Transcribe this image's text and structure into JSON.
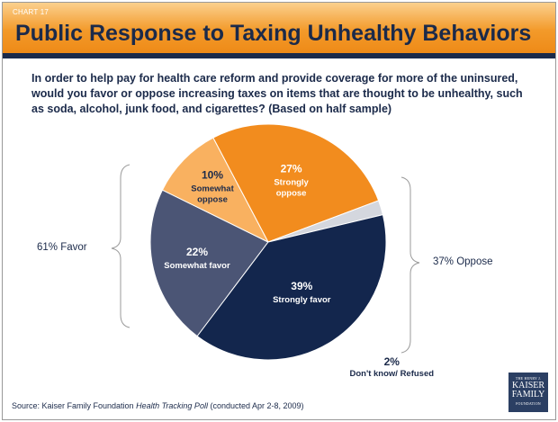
{
  "header": {
    "chart_number": "CHART 17",
    "title": "Public Response to Taxing Unhealthy Behaviors"
  },
  "question": "In order to help pay for health care reform and provide coverage for more of the uninsured, would you favor or oppose increasing taxes on items that are thought to be unhealthy, such as soda, alcohol, junk food, and cigarettes? (Based on half sample)",
  "groups": {
    "favor_label": "61% Favor",
    "oppose_label": "37% Oppose"
  },
  "source": {
    "prefix": "Source: Kaiser Family Foundation ",
    "italic": "Health Tracking Poll",
    "suffix": " (conducted Apr 2-8, 2009)"
  },
  "logo": {
    "line1": "THE HENRY J.",
    "line2": "KAISER",
    "line3": "FAMILY",
    "line4": "FOUNDATION"
  },
  "colors": {
    "title": "#1b2a4a",
    "header_orange": "#f39a2a"
  },
  "chart_data": {
    "type": "pie",
    "slices": [
      {
        "label": "Somewhat favor",
        "value": 22,
        "display": "22%",
        "color": "#4b5575"
      },
      {
        "label": "Somewhat oppose",
        "value": 10,
        "display": "10%",
        "color": "#f9b160"
      },
      {
        "label": "Strongly oppose",
        "value": 27,
        "display": "27%",
        "color": "#f28c1e"
      },
      {
        "label": "Don't know/ Refused",
        "value": 2,
        "display": "2%",
        "color": "#d4d7de"
      },
      {
        "label": "Strongly favor",
        "value": 39,
        "display": "39%",
        "color": "#13264d"
      }
    ]
  }
}
